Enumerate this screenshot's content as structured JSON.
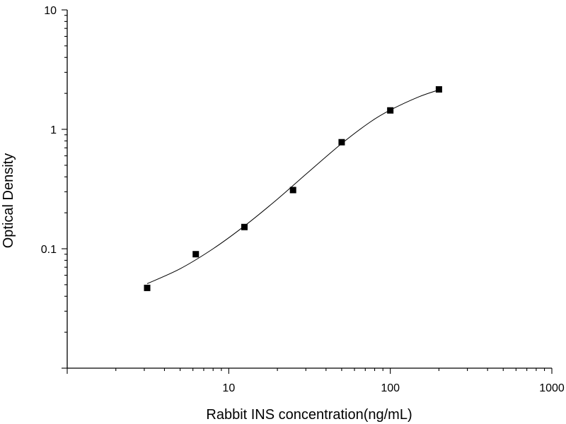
{
  "chart_data": {
    "type": "scatter",
    "xlabel": "Rabbit INS concentration(ng/mL)",
    "ylabel": "Optical Density",
    "xscale": "log",
    "yscale": "log",
    "xlim": [
      1,
      1000
    ],
    "ylim": [
      0.01,
      10
    ],
    "x_ticks": [
      {
        "value": 10,
        "label": "10"
      },
      {
        "value": 100,
        "label": "100"
      },
      {
        "value": 1000,
        "label": "1000"
      }
    ],
    "y_ticks": [
      {
        "value": 0.1,
        "label": "0.1"
      },
      {
        "value": 1,
        "label": "1"
      },
      {
        "value": 10,
        "label": "10"
      }
    ],
    "points": [
      {
        "x": 3.125,
        "y": 0.047
      },
      {
        "x": 6.25,
        "y": 0.09
      },
      {
        "x": 12.5,
        "y": 0.152
      },
      {
        "x": 25,
        "y": 0.31
      },
      {
        "x": 50,
        "y": 0.78
      },
      {
        "x": 100,
        "y": 1.44
      },
      {
        "x": 200,
        "y": 2.16
      }
    ],
    "fit_curve": [
      {
        "x": 3.125,
        "y": 0.051
      },
      {
        "x": 5,
        "y": 0.068
      },
      {
        "x": 8,
        "y": 0.1
      },
      {
        "x": 12.5,
        "y": 0.155
      },
      {
        "x": 20,
        "y": 0.26
      },
      {
        "x": 30,
        "y": 0.42
      },
      {
        "x": 50,
        "y": 0.76
      },
      {
        "x": 75,
        "y": 1.15
      },
      {
        "x": 100,
        "y": 1.45
      },
      {
        "x": 150,
        "y": 1.87
      },
      {
        "x": 200,
        "y": 2.14
      }
    ],
    "grid": false,
    "legend": "none"
  }
}
